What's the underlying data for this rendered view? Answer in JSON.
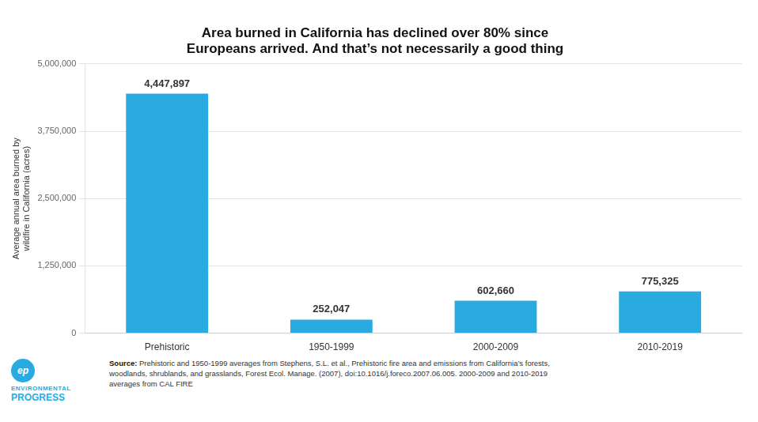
{
  "chart_data": {
    "type": "bar",
    "title": [
      "Area burned in California has declined over 80% since",
      "Europeans arrived. And that’s not necessarily a good thing"
    ],
    "y_label": "Average annual area burned by\nwildfire in California (acres)",
    "categories": [
      "Prehistoric",
      "1950-1999",
      "2000-2009",
      "2010-2019"
    ],
    "values": [
      4447897,
      252047,
      602660,
      775325
    ],
    "value_labels": [
      "4,447,897",
      "252,047",
      "602,660",
      "775,325"
    ],
    "data_labels": true,
    "color": "#29ABE2",
    "ylim": [
      0,
      5000000
    ],
    "yticks": [
      0,
      {
        "value": 1250000,
        "label": "1,250,000"
      },
      {
        "value": 2500000,
        "label": "2,500,000"
      },
      {
        "value": 3750000,
        "label": "3,750,000"
      },
      {
        "value": 5000000,
        "label": "5,000,000"
      }
    ],
    "grid": true,
    "annotations": [
      "Source:",
      " Prehistoric and 1950-1999 averages from Stephens, S.L. et al., Prehistoric fire area and emissions from California’s forests,\nwoodlands, shrublands, and grasslands, Forest Ecol. Manage. (2007), doi:10.1016/j.foreco.2007.06.005. 2000-2009 and 2010-2019\naverages from CAL FIRE",
      "ep",
      "ENVIRONMENTAL",
      "PROGRESS"
    ]
  }
}
